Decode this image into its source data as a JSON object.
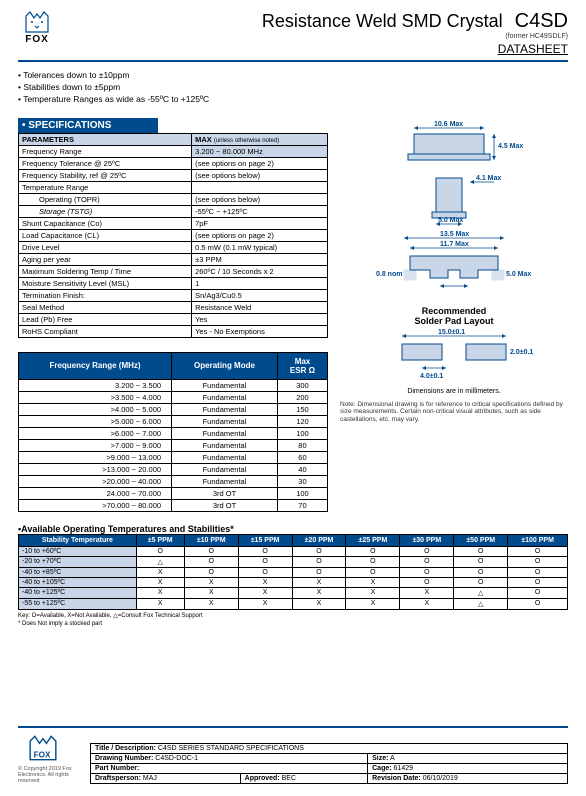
{
  "header": {
    "logo_text": "FOX",
    "title": "Resistance Weld SMD Crystal",
    "product": "C4SD",
    "former": "(former HC49SDLF)",
    "datasheet": "DATASHEET"
  },
  "bullets": [
    "Tolerances down to ±10ppm",
    "Stabilities down to ±5ppm",
    "Temperature Ranges as wide as -55ºC to +125ºC"
  ],
  "spec_header": "• SPECIFICATIONS",
  "spec_cols": {
    "param": "PARAMETERS",
    "max": "MAX",
    "max_note": "(unless otherwise noted)"
  },
  "specs": [
    {
      "p": "Frequency Range",
      "v": "3.200 ~ 80.000 MHz",
      "hl": true
    },
    {
      "p": "Frequency Tolerance @ 25ºC",
      "v": "(see options on page 2)"
    },
    {
      "p": "Frequency Stability, ref @ 25ºC",
      "v": "(see options below)"
    },
    {
      "p": "Temperature Range",
      "v": ""
    },
    {
      "p": "Operating",
      "sub": "(TOPR)",
      "v": "(see options below)",
      "indent": true
    },
    {
      "p": "Storage",
      "sub": "(TSTG)",
      "v": "-55ºC ~ +125ºC",
      "indent": true,
      "italic": true
    },
    {
      "p": "Shunt Capacitance",
      "sub": "(Co)",
      "v": "7pF"
    },
    {
      "p": "Load Capacitance",
      "sub": "(CL)",
      "v": "(see options on page 2)"
    },
    {
      "p": "Drive Level",
      "v": "0.5 mW (0.1 mW typical)"
    },
    {
      "p": "Aging per year",
      "v": "±3 PPM"
    },
    {
      "p": "Maximum Soldering Temp / Time",
      "v": "260ºC / 10 Seconds x 2"
    },
    {
      "p": "Moisture Sensitivity Level (MSL)",
      "v": "1"
    },
    {
      "p": "Termination Finish:",
      "v": "Sn/Ag3/Cu0.5"
    },
    {
      "p": "Seal Method",
      "v": "Resistance Weld"
    },
    {
      "p": "Lead (Pb) Free",
      "v": "Yes"
    },
    {
      "p": "RoHS Compliant",
      "v": "Yes - No Exemptions"
    }
  ],
  "freq_cols": [
    "Frequency Range (MHz)",
    "Operating Mode",
    "Max\nESR Ω"
  ],
  "freq_rows": [
    [
      "3.200 ~ 3.500",
      "Fundamental",
      "300"
    ],
    [
      ">3.500 ~ 4.000",
      "Fundamental",
      "200"
    ],
    [
      ">4.000 ~ 5.000",
      "Fundamental",
      "150"
    ],
    [
      ">5.000 ~ 6.000",
      "Fundamental",
      "120"
    ],
    [
      ">6.000 ~ 7.000",
      "Fundamental",
      "100"
    ],
    [
      ">7.000 ~ 9.000",
      "Fundamental",
      "80"
    ],
    [
      ">9.000 ~ 13.000",
      "Fundamental",
      "60"
    ],
    [
      ">13.000 ~ 20.000",
      "Fundamental",
      "40"
    ],
    [
      ">20.000 ~ 40.000",
      "Fundamental",
      "30"
    ],
    [
      "24.000 ~ 70.000",
      "3rd OT",
      "100"
    ],
    [
      ">70.000 ~ 80.000",
      "3rd OT",
      "70"
    ]
  ],
  "stab_title": "•Available Operating Temperatures and Stabilities*",
  "stab_cols": [
    "Stability Temperature",
    "±5 PPM",
    "±10 PPM",
    "±15 PPM",
    "±20 PPM",
    "±25 PPM",
    "±30 PPM",
    "±50 PPM",
    "±100 PPM"
  ],
  "stab_rows": [
    [
      "-10 to +60ºC",
      "O",
      "O",
      "O",
      "O",
      "O",
      "O",
      "O",
      "O"
    ],
    [
      "-20 to +70ºC",
      "△",
      "O",
      "O",
      "O",
      "O",
      "O",
      "O",
      "O"
    ],
    [
      "-40 to +85ºC",
      "X",
      "O",
      "O",
      "O",
      "O",
      "O",
      "O",
      "O"
    ],
    [
      "-40 to +105ºC",
      "X",
      "X",
      "X",
      "X",
      "X",
      "O",
      "O",
      "O"
    ],
    [
      "-40 to +125ºC",
      "X",
      "X",
      "X",
      "X",
      "X",
      "X",
      "△",
      "O"
    ],
    [
      "-55 to +125ºC",
      "X",
      "X",
      "X",
      "X",
      "X",
      "X",
      "△",
      "O"
    ]
  ],
  "key": "Key: O=Available, X=Not Available, △=Consult Fox Technical Support",
  "key2": "* Does Not imply a stocked part",
  "dims": {
    "top_w": "10.6 Max",
    "top_h": "4.5 Max",
    "side_w": "4.1 Max",
    "side_h": "5.0 Max",
    "bot_w": "13.5 Max",
    "bot_w2": "11.7 Max",
    "bot_gap": "5.0 Max",
    "bot_nom": "0.8 nom",
    "solder_title": "Recommended\nSolder Pad Layout",
    "solder_w": "15.0±0.1",
    "solder_h": "2.0±0.1",
    "solder_gap": "4.0±0.1",
    "caption": "Dimensions are in millimeters.",
    "note": "Note: Dimensional drawing is for reference to critical specifications defined by size measurements. Certain non-critical visual attributes, such as side castellations, etc. may vary."
  },
  "footer": {
    "title_lbl": "Title / Description:",
    "title_val": "C4SD SERIES STANDARD SPECIFICATIONS",
    "drawing_lbl": "Drawing Number:",
    "drawing_val": "C4SD-DOC-1",
    "size_lbl": "Size:",
    "size_val": "A",
    "part_lbl": "Part Number:",
    "cage_lbl": "Cage:",
    "cage_val": "61429",
    "draft_lbl": "Draftsperson:",
    "draft_val": "MAJ",
    "appr_lbl": "Approved:",
    "appr_val": "BEC",
    "rev_lbl": "Revision Date:",
    "rev_val": "06/10/2019",
    "copyright": "© Copyright 2019 Fox Electronics. All rights reserved"
  },
  "colors": {
    "brand": "#004a8e",
    "header_bg": "#c9d6e8"
  }
}
